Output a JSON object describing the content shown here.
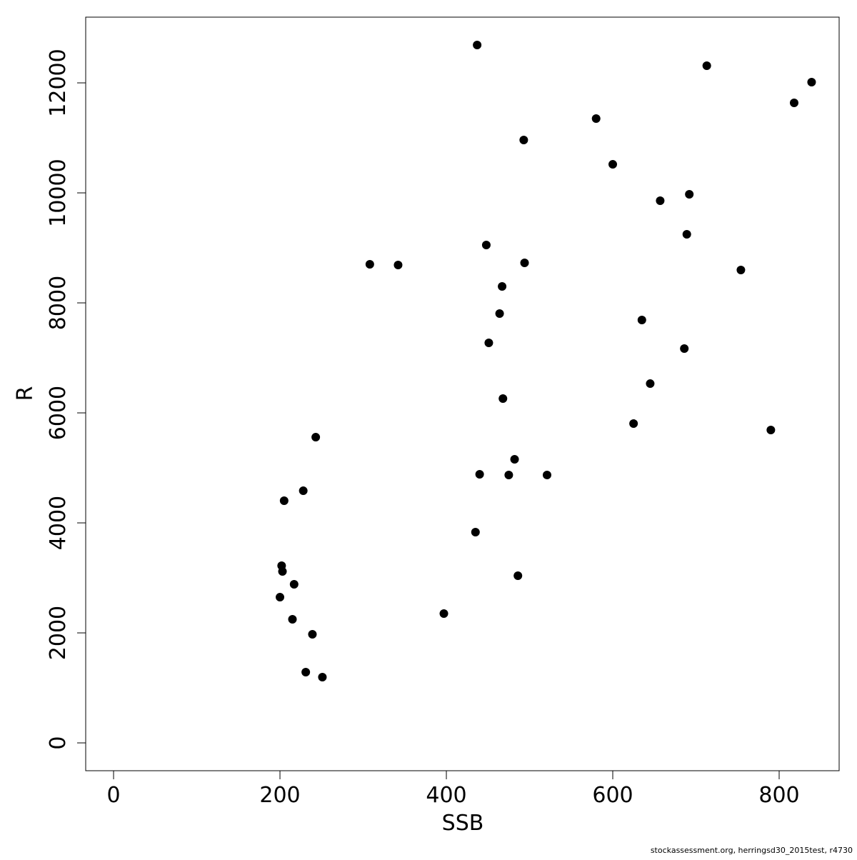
{
  "chart_data": {
    "type": "scatter",
    "x_label": "SSB",
    "y_label": "R",
    "footer": "stockassessment.org, herringsd30_2015test, r4730",
    "color": "#000000",
    "xlim": [
      -33.5,
      872.1
    ],
    "ylim": [
      -506,
      13195
    ],
    "xticks": [
      0,
      200,
      400,
      600,
      800
    ],
    "yticks": [
      0,
      2000,
      4000,
      6000,
      8000,
      10000,
      12000
    ],
    "x": [
      437,
      713,
      839,
      818,
      580,
      493,
      600,
      692,
      657,
      689,
      448,
      308,
      342,
      494,
      754,
      467,
      464,
      635,
      451,
      686,
      645,
      468,
      625,
      790,
      243,
      482,
      440,
      475,
      521,
      228,
      205,
      435,
      202,
      203,
      217,
      486,
      200,
      397,
      215,
      239,
      231,
      251
    ],
    "values": [
      12688,
      12312,
      12013,
      11636,
      11351,
      10961,
      10519,
      9974,
      9857,
      9247,
      9052,
      8701,
      8688,
      8727,
      8597,
      8299,
      7805,
      7688,
      7273,
      7169,
      6532,
      6260,
      5805,
      5688,
      5558,
      5156,
      4883,
      4870,
      4870,
      4584,
      4403,
      3831,
      3221,
      3117,
      2883,
      3039,
      2649,
      2351,
      2247,
      1974,
      1286,
      1195
    ]
  }
}
